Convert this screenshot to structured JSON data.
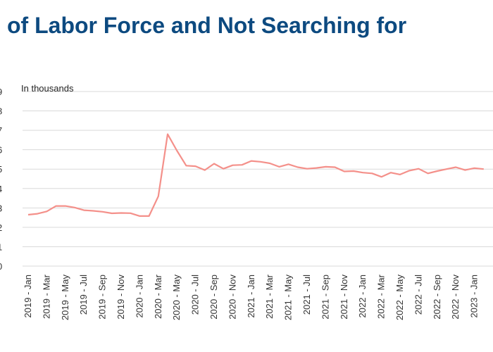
{
  "chart_data": {
    "type": "line",
    "title": "of Labor Force and Not Searching for",
    "unit_label": "In thousands",
    "xlabel": "",
    "ylabel": "",
    "grid": true,
    "y_tick_values": [
      0,
      1,
      2,
      3,
      4,
      5,
      6,
      7,
      8,
      9
    ],
    "ylim": [
      0,
      9
    ],
    "x_tick_labels": [
      "2019 - Jan",
      "2019 - Mar",
      "2019 - May",
      "2019 - Jul",
      "2019 - Sep",
      "2019 - Nov",
      "2020 - Jan",
      "2020 - Mar",
      "2020 - May",
      "2020 - Jul",
      "2020 - Sep",
      "2020 - Nov",
      "2021 - Jan",
      "2021 - Mar",
      "2021 - May",
      "2021 - Jul",
      "2021 - Sep",
      "2021 - Nov",
      "2022 - Jan",
      "2022 - Mar",
      "2022 - May",
      "2022 - Jul",
      "2022 - Sep",
      "2022 - Nov",
      "2023 - Jan"
    ],
    "categories": [
      "2019 - Jan",
      "2019 - Feb",
      "2019 - Mar",
      "2019 - Apr",
      "2019 - May",
      "2019 - Jun",
      "2019 - Jul",
      "2019 - Aug",
      "2019 - Sep",
      "2019 - Oct",
      "2019 - Nov",
      "2019 - Dec",
      "2020 - Jan",
      "2020 - Feb",
      "2020 - Mar",
      "2020 - Apr",
      "2020 - May",
      "2020 - Jun",
      "2020 - Jul",
      "2020 - Aug",
      "2020 - Sep",
      "2020 - Oct",
      "2020 - Nov",
      "2020 - Dec",
      "2021 - Jan",
      "2021 - Feb",
      "2021 - Mar",
      "2021 - Apr",
      "2021 - May",
      "2021 - Jun",
      "2021 - Jul",
      "2021 - Aug",
      "2021 - Sep",
      "2021 - Oct",
      "2021 - Nov",
      "2021 - Dec",
      "2022 - Jan",
      "2022 - Feb",
      "2022 - Mar",
      "2022 - Apr",
      "2022 - May",
      "2022 - Jun",
      "2022 - Jul",
      "2022 - Aug",
      "2022 - Sep",
      "2022 - Oct",
      "2022 - Nov",
      "2022 - Dec",
      "2023 - Jan",
      "2023 - Feb"
    ],
    "series": [
      {
        "color": "#f4908a",
        "values": [
          2.65,
          2.7,
          2.82,
          3.1,
          3.1,
          3.02,
          2.88,
          2.85,
          2.8,
          2.72,
          2.74,
          2.73,
          2.58,
          2.58,
          3.6,
          6.8,
          5.95,
          5.18,
          5.15,
          4.95,
          5.28,
          5.02,
          5.2,
          5.22,
          5.42,
          5.38,
          5.3,
          5.12,
          5.25,
          5.1,
          5.02,
          5.06,
          5.12,
          5.1,
          4.88,
          4.9,
          4.82,
          4.78,
          4.6,
          4.82,
          4.72,
          4.92,
          5.02,
          4.78,
          4.9,
          5.0,
          5.1,
          4.95,
          5.05,
          5.0
        ]
      }
    ]
  }
}
